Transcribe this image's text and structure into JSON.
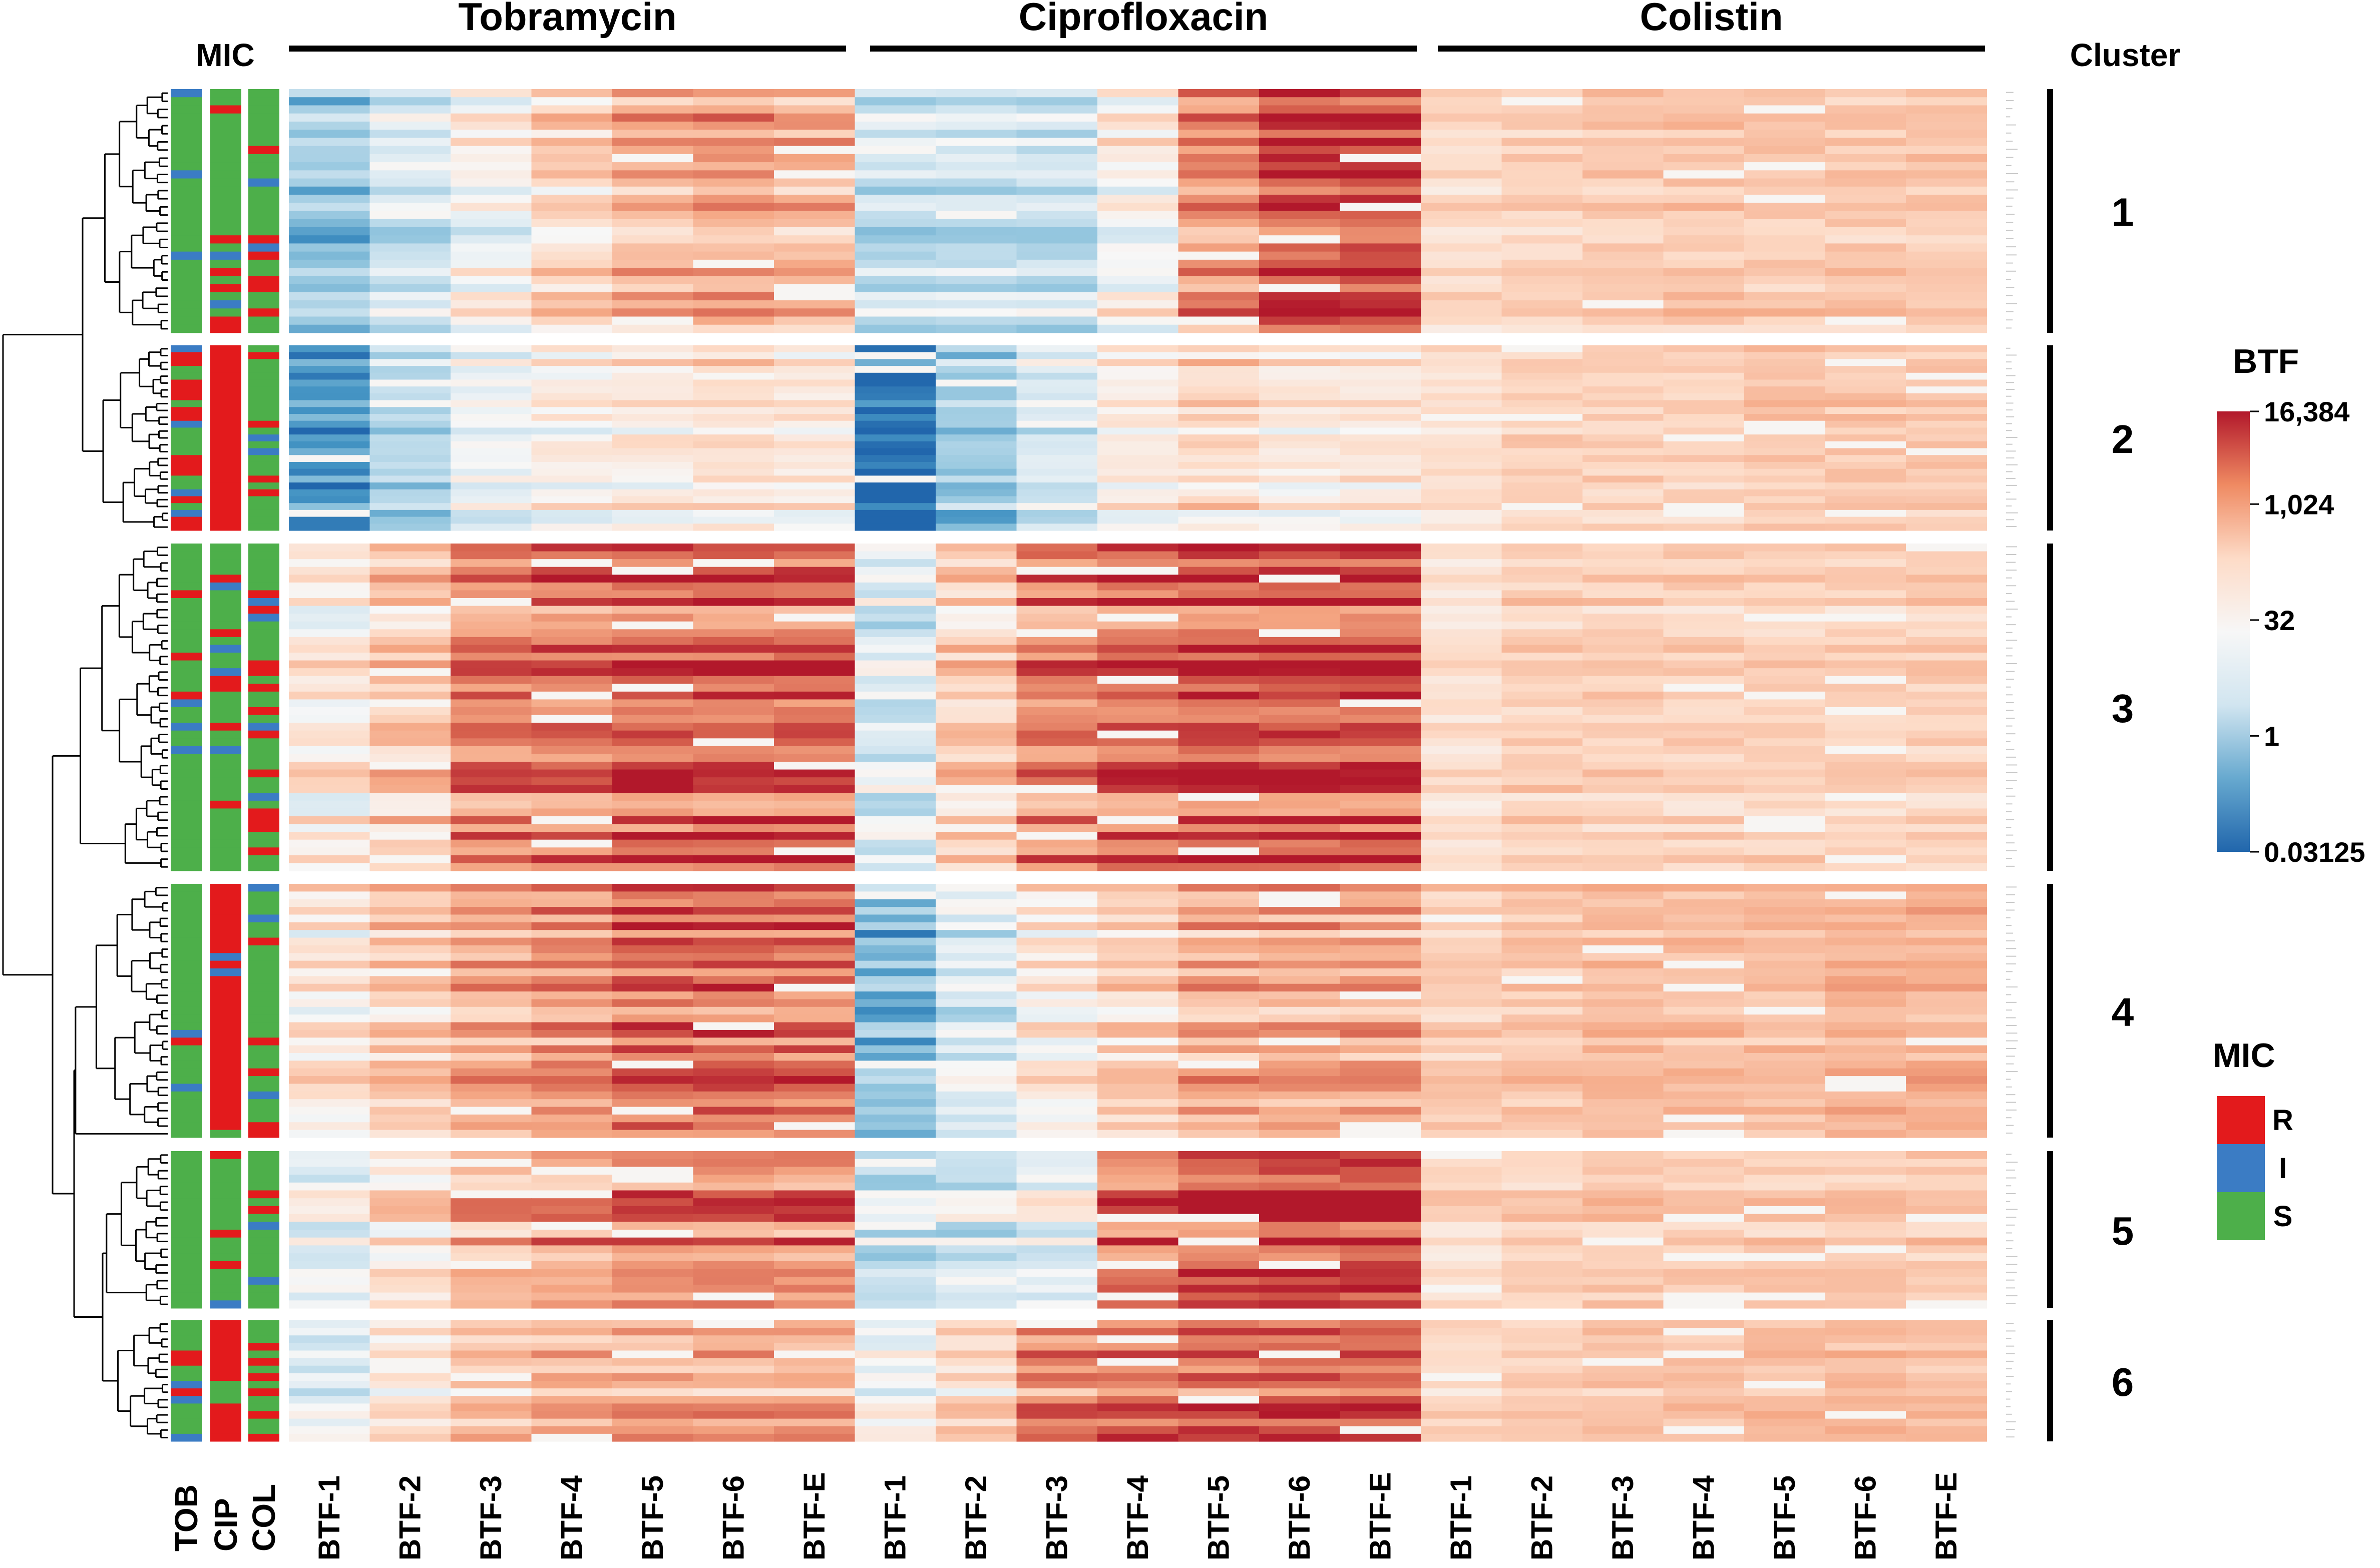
{
  "chart_data": {
    "type": "heatmap",
    "title": "",
    "drugs": [
      "Tobramycin",
      "Ciprofloxacin",
      "Colistin"
    ],
    "btf_columns": [
      "BTF-1",
      "BTF-2",
      "BTF-3",
      "BTF-4",
      "BTF-5",
      "BTF-6",
      "BTF-E"
    ],
    "mic_heading": "MIC",
    "mic_columns": [
      "TOB",
      "CIP",
      "COL"
    ],
    "cluster_heading": "Cluster",
    "clusters": [
      {
        "label": "1",
        "rows": 30,
        "tob_levels": [
          -0.5,
          -0.25,
          0.0,
          0.25,
          0.45,
          0.5,
          0.45
        ],
        "cip_levels": [
          -0.3,
          -0.3,
          -0.3,
          0.05,
          0.6,
          0.85,
          0.85
        ],
        "col_levels": [
          0.25,
          0.3,
          0.35,
          0.35,
          0.35,
          0.35,
          0.35
        ]
      },
      {
        "label": "2",
        "rows": 27,
        "tob_levels": [
          -0.8,
          -0.4,
          -0.1,
          0.05,
          0.1,
          0.15,
          0.1
        ],
        "cip_levels": [
          -1.0,
          -0.5,
          -0.2,
          0.1,
          0.2,
          0.1,
          0.15
        ],
        "col_levels": [
          0.2,
          0.3,
          0.3,
          0.3,
          0.35,
          0.35,
          0.35
        ]
      },
      {
        "label": "3",
        "rows": 42,
        "tob_levels": [
          0.1,
          0.35,
          0.65,
          0.7,
          0.75,
          0.75,
          0.75
        ],
        "cip_levels": [
          -0.2,
          0.3,
          0.65,
          0.75,
          0.8,
          0.8,
          0.8
        ],
        "col_levels": [
          0.2,
          0.3,
          0.3,
          0.3,
          0.3,
          0.3,
          0.3
        ]
      },
      {
        "label": "4",
        "rows": 33,
        "tob_levels": [
          0.1,
          0.3,
          0.45,
          0.55,
          0.7,
          0.7,
          0.7
        ],
        "cip_levels": [
          -0.6,
          -0.2,
          0.1,
          0.25,
          0.45,
          0.45,
          0.45
        ],
        "col_levels": [
          0.3,
          0.35,
          0.4,
          0.4,
          0.4,
          0.45,
          0.45
        ]
      },
      {
        "label": "5",
        "rows": 20,
        "tob_levels": [
          -0.1,
          0.2,
          0.45,
          0.55,
          0.65,
          0.65,
          0.65
        ],
        "cip_levels": [
          -0.3,
          -0.2,
          -0.1,
          0.7,
          0.85,
          0.9,
          0.9
        ],
        "col_levels": [
          0.25,
          0.3,
          0.35,
          0.35,
          0.35,
          0.35,
          0.35
        ]
      },
      {
        "label": "6",
        "rows": 16,
        "tob_levels": [
          -0.2,
          0.1,
          0.3,
          0.4,
          0.45,
          0.45,
          0.45
        ],
        "cip_levels": [
          -0.1,
          0.2,
          0.6,
          0.65,
          0.7,
          0.75,
          0.75
        ],
        "col_levels": [
          0.25,
          0.3,
          0.35,
          0.35,
          0.4,
          0.4,
          0.4
        ]
      }
    ],
    "mic_resistant_fraction": {
      "TOB": [
        0.05,
        0.45,
        0.08,
        0.03,
        0.03,
        0.45
      ],
      "CIP": [
        0.18,
        0.9,
        0.18,
        0.9,
        0.1,
        0.75
      ],
      "COL": [
        0.15,
        0.15,
        0.15,
        0.25,
        0.08,
        0.15
      ]
    },
    "colorbar": {
      "title": "BTF",
      "tick_labels": [
        "16,384",
        "1,024",
        "32",
        "1",
        "0.03125"
      ],
      "tick_values": [
        16384,
        1024,
        32,
        1,
        0.03125
      ],
      "scale": "log2",
      "colors": [
        "#b2182b",
        "#ef8a62",
        "#fddbc7",
        "#f7f7f7",
        "#d1e5f0",
        "#67a9cf",
        "#2166ac"
      ]
    },
    "mic_legend": {
      "title": "MIC",
      "items": [
        {
          "label": "R",
          "color": "#e31a1c"
        },
        {
          "label": "I",
          "color": "#3b7cc4"
        },
        {
          "label": "S",
          "color": "#4daf4a"
        }
      ]
    }
  }
}
